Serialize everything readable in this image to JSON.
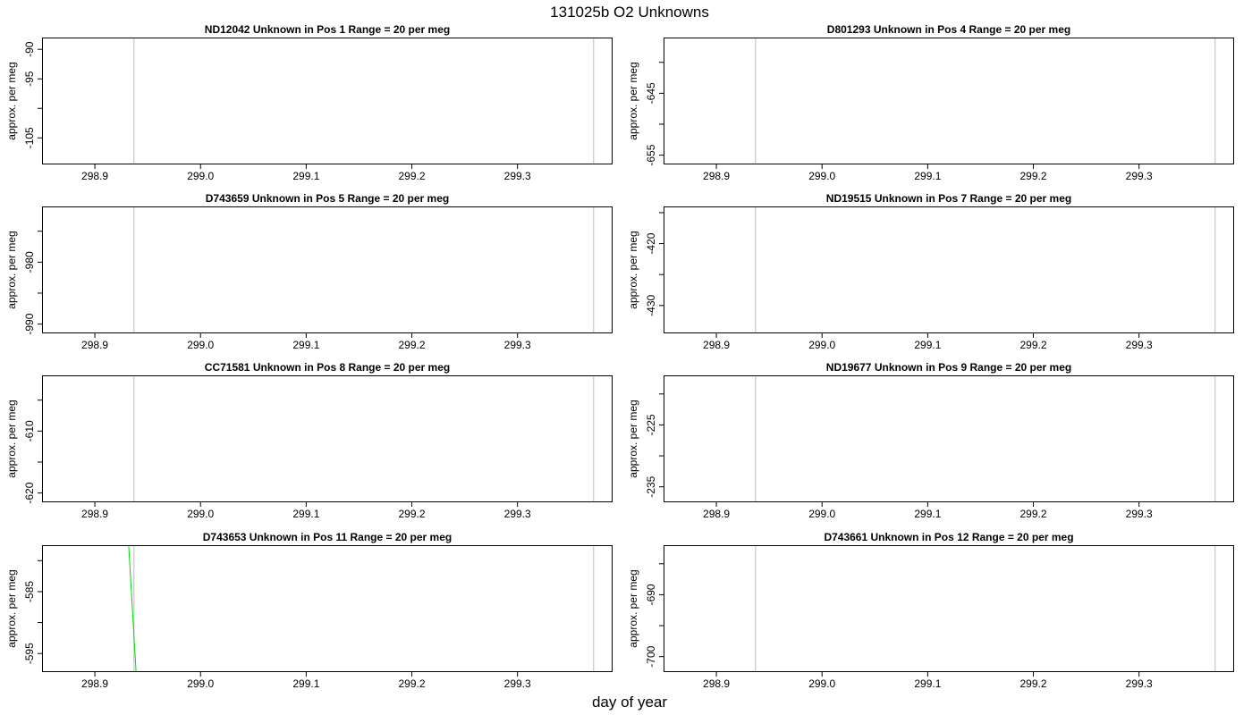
{
  "figure": {
    "title": "131025b  O2 Unknowns",
    "xlabel": "day of year"
  },
  "chart_data": [
    {
      "type": "line",
      "title_parts": [
        "ND12042",
        "Unknown in Pos 1",
        "Range = 20 per meg"
      ],
      "xlabel": "",
      "ylabel": "approx. per meg",
      "xlim": [
        298.85,
        299.39
      ],
      "ylim": [
        -109.5,
        -88
      ],
      "x_ticks": [
        298.9,
        299.0,
        299.1,
        299.2,
        299.3
      ],
      "x_tick_labels": [
        "298.9",
        "299.0",
        "299.1",
        "299.2",
        "299.3"
      ],
      "y_ticks": [
        -90,
        -95,
        -100,
        -105
      ],
      "y_tick_labels": [
        "-90",
        "-95",
        "",
        "-105"
      ],
      "vlines": [
        298.937,
        299.372
      ],
      "series": []
    },
    {
      "type": "line",
      "title_parts": [
        "D801293",
        "Unknown in Pos 4",
        "Range = 20 per meg"
      ],
      "xlabel": "",
      "ylabel": "approx. per meg",
      "xlim": [
        298.85,
        299.39
      ],
      "ylim": [
        -656.5,
        -636
      ],
      "x_ticks": [
        298.9,
        299.0,
        299.1,
        299.2,
        299.3
      ],
      "x_tick_labels": [
        "298.9",
        "299.0",
        "299.1",
        "299.2",
        "299.3"
      ],
      "y_ticks": [
        -640,
        -645,
        -650,
        -655
      ],
      "y_tick_labels": [
        "",
        "-645",
        "",
        "-655"
      ],
      "vlines": [
        298.937,
        299.372
      ],
      "series": []
    },
    {
      "type": "line",
      "title_parts": [
        "D743659",
        "Unknown in Pos 5",
        "Range = 20 per meg"
      ],
      "xlabel": "",
      "ylabel": "approx. per meg",
      "xlim": [
        298.85,
        299.39
      ],
      "ylim": [
        -991.5,
        -971
      ],
      "x_ticks": [
        298.9,
        299.0,
        299.1,
        299.2,
        299.3
      ],
      "x_tick_labels": [
        "298.9",
        "299.0",
        "299.1",
        "299.2",
        "299.3"
      ],
      "y_ticks": [
        -975,
        -980,
        -985,
        -990
      ],
      "y_tick_labels": [
        "",
        "-980",
        "",
        "-990"
      ],
      "vlines": [
        298.937,
        299.372
      ],
      "series": []
    },
    {
      "type": "line",
      "title_parts": [
        "ND19515",
        "Unknown in Pos 7",
        "Range = 20 per meg"
      ],
      "xlabel": "",
      "ylabel": "approx. per meg",
      "xlim": [
        298.85,
        299.39
      ],
      "ylim": [
        -434.5,
        -414
      ],
      "x_ticks": [
        298.9,
        299.0,
        299.1,
        299.2,
        299.3
      ],
      "x_tick_labels": [
        "298.9",
        "299.0",
        "299.1",
        "299.2",
        "299.3"
      ],
      "y_ticks": [
        -415,
        -420,
        -425,
        -430
      ],
      "y_tick_labels": [
        "",
        "-420",
        "",
        "-430"
      ],
      "vlines": [
        298.937,
        299.372
      ],
      "series": []
    },
    {
      "type": "line",
      "title_parts": [
        "CC71581",
        "Unknown in Pos 8",
        "Range = 20 per meg"
      ],
      "xlabel": "",
      "ylabel": "approx. per meg",
      "xlim": [
        298.85,
        299.39
      ],
      "ylim": [
        -621.5,
        -601
      ],
      "x_ticks": [
        298.9,
        299.0,
        299.1,
        299.2,
        299.3
      ],
      "x_tick_labels": [
        "298.9",
        "299.0",
        "299.1",
        "299.2",
        "299.3"
      ],
      "y_ticks": [
        -605,
        -610,
        -615,
        -620
      ],
      "y_tick_labels": [
        "",
        "-610",
        "",
        "-620"
      ],
      "vlines": [
        298.937,
        299.372
      ],
      "series": []
    },
    {
      "type": "line",
      "title_parts": [
        "ND19677",
        "Unknown in Pos 9",
        "Range = 20 per meg"
      ],
      "xlabel": "",
      "ylabel": "approx. per meg",
      "xlim": [
        298.85,
        299.39
      ],
      "ylim": [
        -237.5,
        -217
      ],
      "x_ticks": [
        298.9,
        299.0,
        299.1,
        299.2,
        299.3
      ],
      "x_tick_labels": [
        "298.9",
        "299.0",
        "299.1",
        "299.2",
        "299.3"
      ],
      "y_ticks": [
        -220,
        -225,
        -230,
        -235
      ],
      "y_tick_labels": [
        "",
        "-225",
        "",
        "-235"
      ],
      "vlines": [
        298.937,
        299.372
      ],
      "series": []
    },
    {
      "type": "line",
      "title_parts": [
        "D743653",
        "Unknown in Pos 11",
        "Range = 20 per meg"
      ],
      "xlabel": "",
      "ylabel": "approx. per meg",
      "xlim": [
        298.85,
        299.39
      ],
      "ylim": [
        -598,
        -577.5
      ],
      "x_ticks": [
        298.9,
        299.0,
        299.1,
        299.2,
        299.3
      ],
      "x_tick_labels": [
        "298.9",
        "299.0",
        "299.1",
        "299.2",
        "299.3"
      ],
      "y_ticks": [
        -580,
        -585,
        -590,
        -595
      ],
      "y_tick_labels": [
        "",
        "-585",
        "",
        "-595"
      ],
      "vlines": [
        298.937,
        299.372
      ],
      "series": [
        {
          "color": "#00dd00",
          "x": [
            298.932,
            298.939
          ],
          "y": [
            -577.5,
            -598
          ]
        }
      ]
    },
    {
      "type": "line",
      "title_parts": [
        "D743661",
        "Unknown in Pos 12",
        "Range = 20 per meg"
      ],
      "xlabel": "",
      "ylabel": "approx. per meg",
      "xlim": [
        298.85,
        299.39
      ],
      "ylim": [
        -702.5,
        -682
      ],
      "x_ticks": [
        298.9,
        299.0,
        299.1,
        299.2,
        299.3
      ],
      "x_tick_labels": [
        "298.9",
        "299.0",
        "299.1",
        "299.2",
        "299.3"
      ],
      "y_ticks": [
        -685,
        -690,
        -695,
        -700
      ],
      "y_tick_labels": [
        "",
        "-690",
        "",
        "-700"
      ],
      "vlines": [
        298.937,
        299.372
      ],
      "series": []
    }
  ],
  "colors": {
    "frame": "#000000",
    "vline": "#c8c8c8",
    "background": "#ffffff"
  }
}
